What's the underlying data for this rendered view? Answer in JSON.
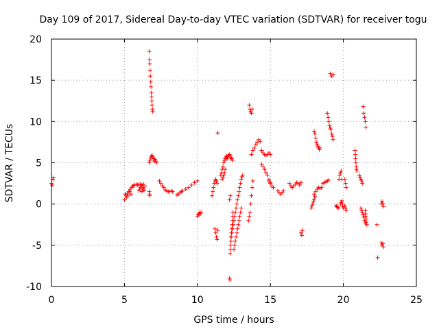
{
  "chart_data": {
    "type": "scatter",
    "title": "Day 109 of 2017, Sidereal Day-to-day VTEC variation (SDTVAR) for receiver togu",
    "xlabel": "GPS time / hours",
    "ylabel": "SDTVAR / TECUs",
    "xlim": [
      0,
      25
    ],
    "ylim": [
      -10,
      20
    ],
    "xticks": [
      "0",
      "5",
      "10",
      "15",
      "20",
      "25"
    ],
    "yticks": [
      "-10",
      "-5",
      "0",
      "5",
      "10",
      "15",
      "20"
    ],
    "grid": true,
    "marker": "+",
    "series": [
      {
        "color": "#ff0000",
        "x": [
          0.0,
          0.05,
          0.1,
          0.15,
          5.0,
          5.1,
          5.2,
          5.3,
          5.4,
          5.5,
          5.6,
          5.7,
          5.8,
          5.9,
          6.0,
          6.1,
          6.2,
          6.3,
          6.4,
          5.05,
          5.15,
          5.25,
          5.35,
          5.45,
          5.55,
          6.0,
          6.05,
          6.1,
          6.15,
          6.2,
          6.25,
          6.3,
          6.35,
          6.7,
          6.72,
          6.74,
          6.76,
          6.78,
          6.8,
          6.82,
          6.84,
          6.86,
          6.88,
          6.9,
          6.92,
          6.94,
          6.7,
          6.75,
          6.8,
          6.85,
          6.9,
          6.95,
          7.0,
          7.05,
          7.1,
          7.15,
          7.2,
          6.7,
          6.72,
          6.74,
          7.4,
          7.5,
          7.6,
          7.7,
          7.8,
          7.9,
          8.0,
          8.1,
          8.2,
          8.3,
          8.6,
          8.7,
          8.8,
          8.9,
          9.0,
          9.2,
          9.4,
          9.6,
          9.8,
          10.0,
          10.0,
          10.05,
          10.1,
          10.15,
          10.2,
          10.25,
          11.0,
          11.05,
          11.1,
          11.15,
          11.2,
          11.25,
          11.3,
          11.35,
          11.2,
          11.25,
          11.3,
          11.35,
          11.4,
          11.4,
          11.6,
          11.65,
          11.7,
          11.75,
          11.8,
          11.85,
          11.9,
          11.95,
          12.0,
          11.7,
          11.75,
          11.8,
          11.85,
          11.9,
          12.0,
          12.05,
          12.1,
          12.15,
          12.2,
          12.25,
          12.3,
          12.35,
          12.4,
          12.2,
          12.22,
          12.24,
          12.26,
          12.28,
          12.3,
          12.32,
          12.34,
          12.36,
          12.38,
          12.4,
          12.42,
          12.44,
          12.3,
          12.35,
          12.4,
          12.45,
          12.5,
          12.55,
          12.6,
          12.65,
          12.7,
          12.75,
          12.8,
          12.85,
          12.9,
          12.95,
          13.0,
          13.05,
          13.1,
          12.5,
          12.55,
          12.6,
          12.65,
          12.7,
          12.75,
          12.8,
          12.85,
          12.9,
          12.95,
          13.0,
          12.2,
          12.25,
          13.5,
          13.55,
          13.6,
          13.65,
          13.7,
          13.75,
          13.8,
          13.55,
          13.6,
          13.65,
          13.7,
          13.75,
          13.7,
          13.8,
          13.9,
          14.0,
          14.1,
          14.2,
          14.3,
          14.4,
          14.5,
          14.6,
          14.7,
          14.8,
          14.9,
          15.0,
          14.4,
          14.5,
          14.6,
          14.7,
          14.8,
          14.9,
          15.0,
          15.1,
          15.2,
          14.9,
          15.0,
          15.5,
          15.6,
          15.7,
          15.8,
          15.9,
          16.3,
          16.4,
          16.5,
          16.6,
          16.7,
          16.8,
          16.9,
          17.0,
          17.1,
          17.1,
          17.15,
          17.2,
          17.8,
          17.85,
          17.9,
          17.95,
          18.0,
          18.05,
          18.0,
          18.05,
          18.1,
          18.15,
          18.2,
          18.25,
          18.3,
          18.35,
          18.4,
          18.0,
          18.1,
          18.2,
          18.3,
          18.4,
          18.5,
          18.6,
          18.7,
          18.8,
          18.9,
          19.0,
          18.9,
          18.95,
          19.0,
          19.05,
          19.1,
          19.15,
          19.2,
          19.25,
          19.3,
          19.1,
          19.2,
          19.3,
          19.5,
          19.55,
          19.6,
          19.65,
          19.7,
          19.75,
          19.8,
          19.85,
          19.9,
          19.95,
          20.0,
          19.8,
          19.85,
          19.9,
          19.95,
          20.1,
          20.15,
          20.2,
          20.1,
          20.15,
          20.2,
          20.8,
          20.82,
          20.84,
          20.86,
          20.88,
          20.9,
          20.92,
          21.1,
          21.15,
          21.2,
          21.25,
          21.3,
          21.2,
          21.25,
          21.3,
          21.35,
          21.4,
          21.45,
          21.5,
          21.35,
          21.4,
          21.45,
          21.5,
          21.55,
          21.5,
          21.52,
          21.54,
          21.56,
          21.58,
          21.6,
          22.3,
          22.35,
          22.6,
          22.65,
          22.7,
          22.75,
          22.6,
          22.65,
          22.7,
          22.75
        ],
        "y": [
          2.5,
          2.3,
          3.0,
          3.2,
          0.5,
          1.0,
          1.3,
          1.5,
          1.8,
          2.0,
          2.2,
          2.3,
          2.4,
          2.3,
          2.4,
          2.4,
          2.3,
          2.4,
          2.2,
          1.2,
          0.8,
          1.0,
          1.5,
          1.2,
          2.2,
          1.6,
          1.8,
          2.0,
          2.2,
          1.5,
          1.8,
          2.0,
          1.7,
          18.5,
          17.5,
          17.0,
          16.2,
          15.5,
          14.8,
          14.2,
          13.5,
          13.0,
          12.5,
          12.0,
          11.5,
          11.2,
          5.0,
          5.3,
          5.6,
          5.8,
          5.9,
          5.7,
          5.5,
          5.2,
          5.4,
          5.2,
          5.0,
          1.5,
          1.2,
          1.0,
          2.8,
          2.5,
          2.2,
          2.0,
          1.7,
          1.6,
          1.5,
          1.5,
          1.6,
          1.5,
          1.1,
          1.2,
          1.4,
          1.5,
          1.6,
          1.8,
          2.0,
          2.3,
          2.6,
          2.8,
          -1.5,
          -1.3,
          -1.2,
          -1.0,
          -1.2,
          -1.0,
          1.0,
          1.5,
          2.0,
          2.5,
          2.8,
          3.0,
          2.8,
          2.5,
          -3.0,
          -3.5,
          -4.0,
          -4.3,
          -3.2,
          8.6,
          3.5,
          3.8,
          4.2,
          4.5,
          5.0,
          5.3,
          5.5,
          5.7,
          5.8,
          3.0,
          3.2,
          3.5,
          3.8,
          4.2,
          5.5,
          5.6,
          5.8,
          5.9,
          6.0,
          5.8,
          5.6,
          5.5,
          5.3,
          -9.0,
          -9.2,
          -6.0,
          -5.5,
          -5.0,
          -4.5,
          -4.0,
          -3.5,
          -3.0,
          -2.5,
          -2.0,
          -1.5,
          -1.0,
          -4.0,
          -3.5,
          -3.0,
          -2.5,
          -2.0,
          -1.5,
          -1.0,
          -0.5,
          0.0,
          0.5,
          1.0,
          1.5,
          2.0,
          2.5,
          3.0,
          3.3,
          3.5,
          -5.5,
          -5.0,
          -4.5,
          -4.0,
          -3.5,
          -3.0,
          -2.5,
          -2.0,
          -1.5,
          -1.0,
          -0.5,
          0.5,
          1.0,
          -2.0,
          -1.5,
          -1.0,
          0.0,
          1.0,
          2.0,
          2.8,
          12.0,
          11.5,
          11.2,
          11.0,
          11.5,
          6.0,
          6.5,
          6.8,
          7.2,
          7.5,
          7.8,
          7.6,
          6.5,
          6.2,
          6.0,
          5.9,
          6.0,
          6.2,
          6.0,
          4.8,
          4.5,
          4.2,
          3.8,
          3.5,
          3.0,
          2.5,
          2.2,
          2.0,
          2.8,
          2.6,
          1.6,
          1.4,
          1.2,
          1.4,
          1.6,
          2.5,
          2.2,
          2.0,
          2.2,
          2.4,
          2.6,
          2.5,
          2.3,
          2.6,
          -3.5,
          -3.8,
          -3.2,
          -0.5,
          -0.2,
          0.0,
          0.3,
          0.6,
          0.9,
          8.8,
          8.5,
          8.0,
          7.5,
          7.2,
          7.0,
          6.8,
          6.6,
          6.8,
          1.2,
          1.5,
          1.8,
          2.0,
          1.9,
          2.0,
          2.5,
          2.6,
          2.7,
          2.8,
          2.9,
          11.0,
          10.5,
          10.0,
          9.5,
          9.2,
          9.0,
          8.5,
          8.2,
          7.8,
          15.8,
          15.5,
          15.7,
          -0.2,
          -0.3,
          -0.4,
          -0.5,
          3.0,
          3.5,
          3.8,
          4.0,
          3.0,
          -0.3,
          -0.5,
          0.0,
          0.2,
          0.4,
          0.0,
          3.0,
          2.5,
          2.0,
          -0.2,
          -0.5,
          -0.8,
          6.5,
          6.0,
          5.5,
          5.0,
          4.5,
          4.2,
          4.0,
          3.5,
          3.2,
          3.0,
          2.8,
          2.5,
          -0.5,
          -0.8,
          -1.0,
          -1.3,
          -1.6,
          -2.0,
          -2.3,
          11.8,
          11.0,
          10.5,
          10.0,
          9.3,
          -0.8,
          -1.2,
          -1.5,
          -1.8,
          -2.2,
          -2.5,
          -2.5,
          -6.5,
          -4.7,
          -5.0,
          -4.8,
          -5.2,
          0.0,
          0.3,
          0.0,
          -0.3
        ]
      }
    ]
  }
}
